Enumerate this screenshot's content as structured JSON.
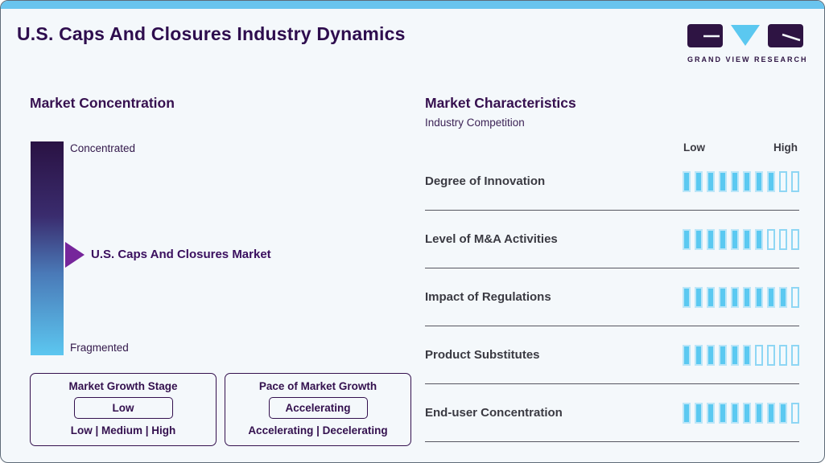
{
  "page": {
    "title": "U.S. Caps And Closures Industry Dynamics"
  },
  "logo": {
    "name": "Grand View Research",
    "text": "GRAND VIEW RESEARCH"
  },
  "market_concentration": {
    "heading": "Market Concentration",
    "top_label": "Concentrated",
    "bottom_label": "Fragmented",
    "marker_label": "U.S. Caps And Closures Market",
    "marker_position_fraction_from_top": 0.53
  },
  "growth_stage_box": {
    "title": "Market Growth Stage",
    "selected": "Low",
    "options_label": "Low | Medium | High"
  },
  "pace_box": {
    "title": "Pace of Market Growth",
    "selected": "Accelerating",
    "options_label": "Accelerating | Decelerating"
  },
  "market_characteristics": {
    "heading": "Market Characteristics",
    "subheading": "Industry Competition",
    "scale_low": "Low",
    "scale_high": "High",
    "rows": [
      {
        "label": "Degree of Innovation",
        "filled": 8,
        "total": 10
      },
      {
        "label": "Level of M&A Activities",
        "filled": 7,
        "total": 10
      },
      {
        "label": "Impact of Regulations",
        "filled": 9,
        "total": 10
      },
      {
        "label": "Product Substitutes",
        "filled": 6,
        "total": 10
      },
      {
        "label": "End-user Concentration",
        "filled": 9,
        "total": 10
      }
    ]
  },
  "chart_data": {
    "type": "bar",
    "title": "Market Characteristics",
    "subtitle": "Industry Competition",
    "categories": [
      "Degree of Innovation",
      "Level of M&A Activities",
      "Impact of Regulations",
      "Product Substitutes",
      "End-user Concentration"
    ],
    "values": [
      8,
      7,
      9,
      6,
      9
    ],
    "value_scale": {
      "total_segments": 10,
      "min_label": "Low",
      "max_label": "High"
    },
    "annotations": {
      "market_concentration_axis": [
        "Concentrated",
        "Fragmented"
      ],
      "market_concentration_marker": "U.S. Caps And Closures Market",
      "market_growth_stage": "Low",
      "pace_of_market_growth": "Accelerating"
    }
  },
  "colors": {
    "accent_blue": "#5BC9F1",
    "top_bar_blue": "#69C4EE",
    "brand_purple": "#2E0D4E",
    "arrow_purple": "#76269B",
    "text_dark": "#3A3A42",
    "background": "#F4F8FB"
  }
}
